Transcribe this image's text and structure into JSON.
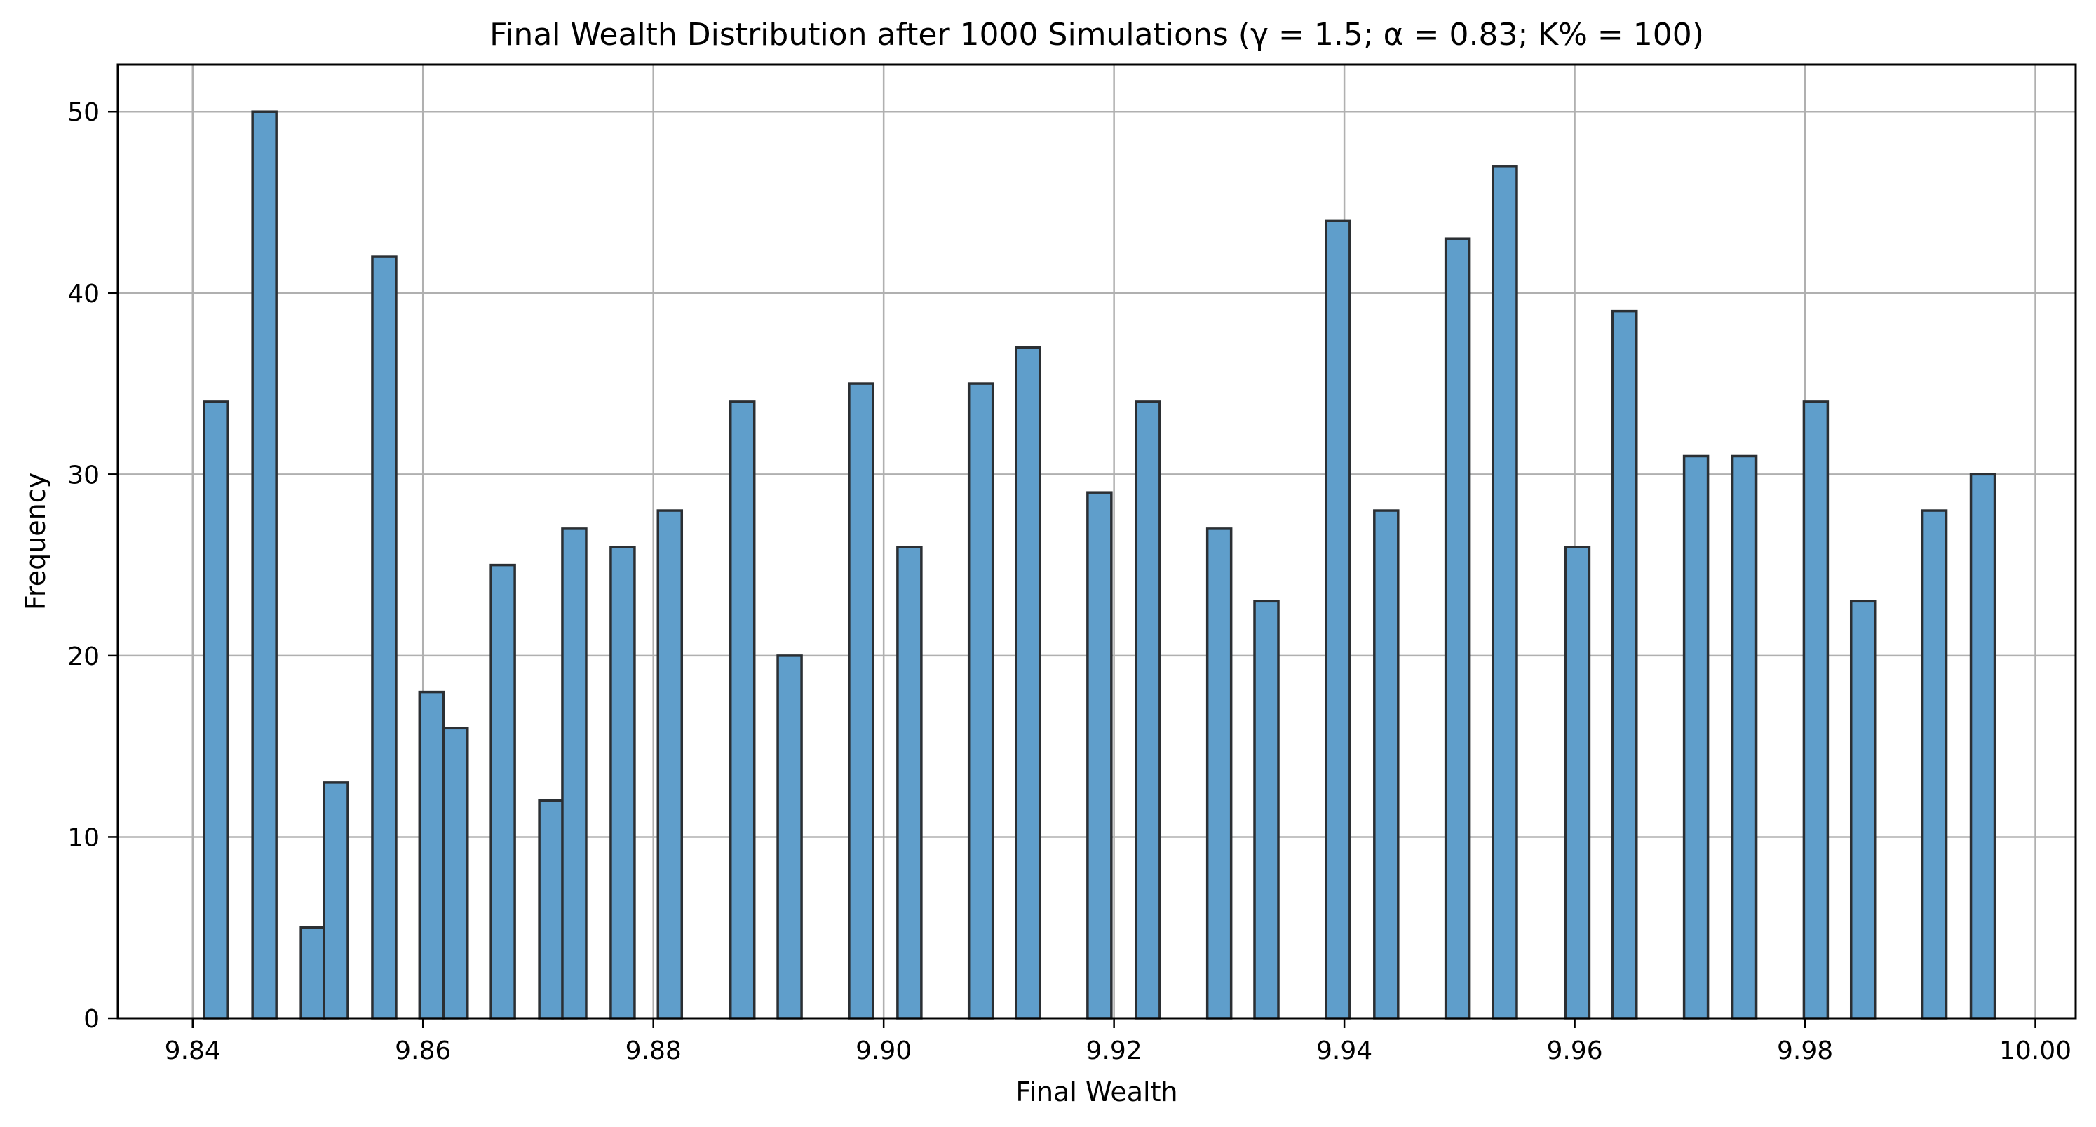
{
  "chart_data": {
    "type": "bar",
    "title": "Final Wealth Distribution after 1000 Simulations (γ = 1.5; α = 0.83; K% = 100)",
    "xlabel": "Final Wealth",
    "ylabel": "Frequency",
    "xlim": [
      9.8335,
      10.0035
    ],
    "ylim": [
      0,
      52.6
    ],
    "xticks": [
      9.84,
      9.86,
      9.88,
      9.9,
      9.92,
      9.94,
      9.96,
      9.98,
      10.0
    ],
    "xtick_labels": [
      "9.84",
      "9.86",
      "9.88",
      "9.90",
      "9.92",
      "9.94",
      "9.96",
      "9.98",
      "10.00"
    ],
    "yticks": [
      0,
      10,
      20,
      30,
      40,
      50
    ],
    "ytick_labels": [
      "0",
      "10",
      "20",
      "30",
      "40",
      "50"
    ],
    "grid": true,
    "bin_width": 0.00207,
    "bins": [
      {
        "x": 9.841,
        "value": 34
      },
      {
        "x": 9.8452,
        "value": 50
      },
      {
        "x": 9.8494,
        "value": 5
      },
      {
        "x": 9.8514,
        "value": 13
      },
      {
        "x": 9.8556,
        "value": 42
      },
      {
        "x": 9.8597,
        "value": 18
      },
      {
        "x": 9.8618,
        "value": 16
      },
      {
        "x": 9.8659,
        "value": 25
      },
      {
        "x": 9.8701,
        "value": 12
      },
      {
        "x": 9.8721,
        "value": 27
      },
      {
        "x": 9.8763,
        "value": 26
      },
      {
        "x": 9.8804,
        "value": 28
      },
      {
        "x": 9.8867,
        "value": 34
      },
      {
        "x": 9.8908,
        "value": 20
      },
      {
        "x": 9.897,
        "value": 35
      },
      {
        "x": 9.9012,
        "value": 26
      },
      {
        "x": 9.9074,
        "value": 35
      },
      {
        "x": 9.9115,
        "value": 37
      },
      {
        "x": 9.9177,
        "value": 29
      },
      {
        "x": 9.9219,
        "value": 34
      },
      {
        "x": 9.9281,
        "value": 27
      },
      {
        "x": 9.9322,
        "value": 23
      },
      {
        "x": 9.9384,
        "value": 44
      },
      {
        "x": 9.9426,
        "value": 28
      },
      {
        "x": 9.9488,
        "value": 43
      },
      {
        "x": 9.9529,
        "value": 47
      },
      {
        "x": 9.9592,
        "value": 26
      },
      {
        "x": 9.9633,
        "value": 39
      },
      {
        "x": 9.9695,
        "value": 31
      },
      {
        "x": 9.9737,
        "value": 31
      },
      {
        "x": 9.9799,
        "value": 34
      },
      {
        "x": 9.984,
        "value": 23
      },
      {
        "x": 9.9902,
        "value": 28
      },
      {
        "x": 9.9944,
        "value": 30
      }
    ],
    "colors": {
      "bar_fill": "#5f9ecb",
      "bar_edge": "#2b2f33",
      "grid": "#b0b0b0",
      "axes": "#000000"
    }
  }
}
